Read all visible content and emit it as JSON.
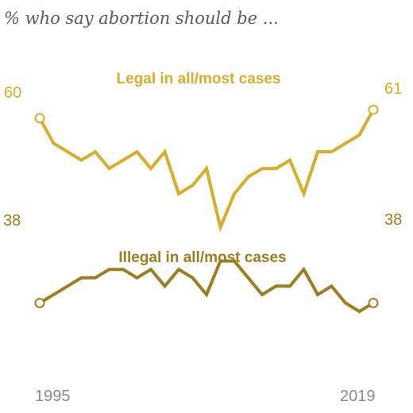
{
  "chart_data": {
    "type": "line",
    "title": "% who say abortion should be ...",
    "x": [
      1995,
      1996,
      1997,
      1998,
      1999,
      2000,
      2001,
      2002,
      2003,
      2004,
      2005,
      2006,
      2007,
      2008,
      2009,
      2010,
      2011,
      2012,
      2013,
      2014,
      2015,
      2016,
      2017,
      2018,
      2019
    ],
    "x_tick_labels": [
      "1995",
      "2019"
    ],
    "ylim": [
      25,
      70
    ],
    "series": [
      {
        "name": "Legal in all/most cases",
        "color": "#d9ac29",
        "values": [
          60,
          57,
          56,
          55,
          56,
          54,
          55,
          56,
          54,
          56,
          51,
          52,
          54,
          47,
          51,
          53,
          54,
          54,
          55,
          51,
          56,
          56,
          57,
          58,
          61
        ],
        "start_label": "60",
        "end_label": "61"
      },
      {
        "name": "Illegal in all/most cases",
        "color": "#9c7d20",
        "values": [
          38,
          39,
          40,
          41,
          41,
          42,
          42,
          41,
          42,
          40,
          42,
          41,
          39,
          43,
          43,
          41,
          39,
          40,
          40,
          42,
          39,
          40,
          38,
          37,
          38
        ],
        "start_label": "38",
        "end_label": "38"
      }
    ]
  }
}
